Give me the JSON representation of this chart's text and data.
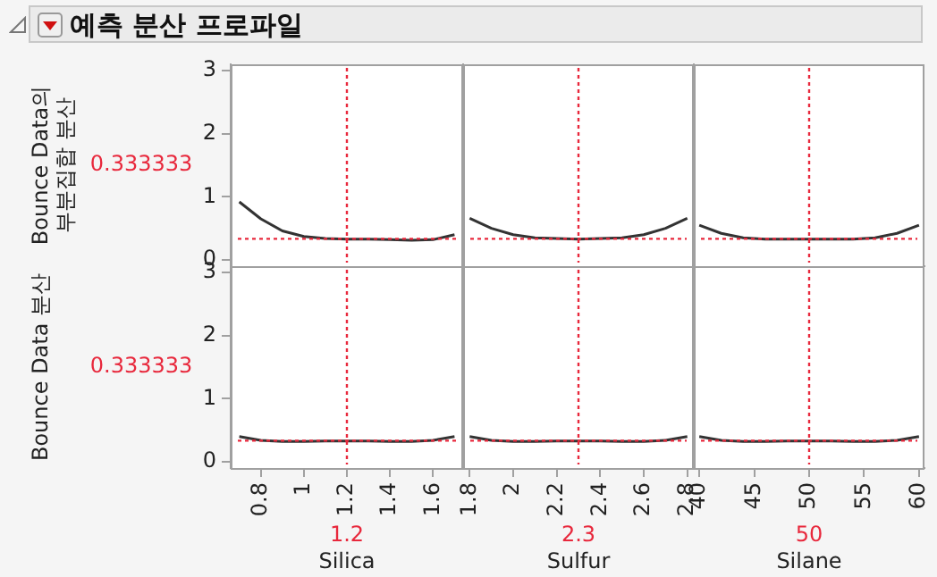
{
  "chart_data": [
    {
      "type": "line",
      "title": "예측 분산 프로파일",
      "ylabel": "Bounce Data의\n부분집합 분산",
      "x": [
        0.7,
        0.8,
        0.9,
        1.0,
        1.1,
        1.2,
        1.3,
        1.4,
        1.5,
        1.6,
        1.7
      ],
      "series": [
        {
          "color": "#333333",
          "values": [
            0.92,
            0.65,
            0.46,
            0.37,
            0.34,
            0.33,
            0.33,
            0.32,
            0.31,
            0.32,
            0.4
          ]
        }
      ],
      "xlim": [
        0.66,
        1.74
      ],
      "xticks": [
        0.8,
        1,
        1.2,
        1.4,
        1.6
      ],
      "ylim": [
        -0.1,
        3.1
      ],
      "yticks": [
        0,
        1,
        2,
        3
      ],
      "tick_labels": "y",
      "legend": false,
      "ref_lines": [
        {
          "axis": "x",
          "value": 1.2,
          "color": "#e8283c",
          "line_style": "dotted"
        },
        {
          "axis": "y",
          "value": 0.333333,
          "label": "0.333333",
          "color": "#e8283c",
          "line_style": "dotted"
        }
      ]
    },
    {
      "type": "line",
      "x": [
        1.8,
        1.9,
        2.0,
        2.1,
        2.2,
        2.3,
        2.4,
        2.5,
        2.6,
        2.7,
        2.8
      ],
      "series": [
        {
          "color": "#333333",
          "values": [
            0.66,
            0.5,
            0.4,
            0.35,
            0.34,
            0.33,
            0.34,
            0.35,
            0.4,
            0.5,
            0.66
          ]
        }
      ],
      "xlim": [
        1.77,
        2.83
      ],
      "xticks": [
        1.8,
        2,
        2.2,
        2.4,
        2.6,
        2.8
      ],
      "ylim": [
        -0.1,
        3.1
      ],
      "yticks": [
        0,
        1,
        2,
        3
      ],
      "tick_labels": false,
      "legend": false,
      "ref_lines": [
        {
          "axis": "x",
          "value": 2.3,
          "color": "#e8283c",
          "line_style": "dotted"
        },
        {
          "axis": "y",
          "value": 0.333333,
          "color": "#e8283c",
          "line_style": "dotted"
        }
      ]
    },
    {
      "type": "line",
      "x": [
        40,
        42,
        44,
        46,
        48,
        50,
        52,
        54,
        56,
        58,
        60
      ],
      "series": [
        {
          "color": "#333333",
          "values": [
            0.55,
            0.42,
            0.35,
            0.33,
            0.33,
            0.33,
            0.33,
            0.33,
            0.35,
            0.42,
            0.55
          ]
        }
      ],
      "xlim": [
        39.5,
        60.5
      ],
      "xticks": [
        40,
        45,
        50,
        55,
        60
      ],
      "ylim": [
        -0.1,
        3.1
      ],
      "yticks": [
        0,
        1,
        2,
        3
      ],
      "tick_labels": false,
      "legend": false,
      "ref_lines": [
        {
          "axis": "x",
          "value": 50,
          "color": "#e8283c",
          "line_style": "dotted"
        },
        {
          "axis": "y",
          "value": 0.333333,
          "color": "#e8283c",
          "line_style": "dotted"
        }
      ]
    },
    {
      "type": "line",
      "xlabel": "Silica",
      "ylabel": "Bounce Data 분산",
      "x": [
        0.7,
        0.8,
        0.9,
        1.0,
        1.1,
        1.2,
        1.3,
        1.4,
        1.5,
        1.6,
        1.7
      ],
      "series": [
        {
          "color": "#333333",
          "values": [
            0.4,
            0.34,
            0.32,
            0.32,
            0.33,
            0.33,
            0.33,
            0.32,
            0.32,
            0.34,
            0.4
          ]
        }
      ],
      "xlim": [
        0.66,
        1.74
      ],
      "xticks": [
        0.8,
        1,
        1.2,
        1.4,
        1.6
      ],
      "ylim": [
        -0.1,
        3.1
      ],
      "yticks": [
        0,
        1,
        2,
        3
      ],
      "legend": false,
      "ref_lines": [
        {
          "axis": "x",
          "value": 1.2,
          "label": "1.2",
          "color": "#e8283c",
          "line_style": "dotted"
        },
        {
          "axis": "y",
          "value": 0.333333,
          "label": "0.333333",
          "color": "#e8283c",
          "line_style": "dotted"
        }
      ]
    },
    {
      "type": "line",
      "xlabel": "Sulfur",
      "x": [
        1.8,
        1.9,
        2.0,
        2.1,
        2.2,
        2.3,
        2.4,
        2.5,
        2.6,
        2.7,
        2.8
      ],
      "series": [
        {
          "color": "#333333",
          "values": [
            0.4,
            0.34,
            0.32,
            0.32,
            0.33,
            0.33,
            0.33,
            0.32,
            0.32,
            0.34,
            0.4
          ]
        }
      ],
      "xlim": [
        1.77,
        2.83
      ],
      "xticks": [
        1.8,
        2,
        2.2,
        2.4,
        2.6,
        2.8
      ],
      "ylim": [
        -0.1,
        3.1
      ],
      "yticks": [
        0,
        1,
        2,
        3
      ],
      "tick_labels": "x",
      "legend": false,
      "ref_lines": [
        {
          "axis": "x",
          "value": 2.3,
          "label": "2.3",
          "color": "#e8283c",
          "line_style": "dotted"
        },
        {
          "axis": "y",
          "value": 0.333333,
          "color": "#e8283c",
          "line_style": "dotted"
        }
      ]
    },
    {
      "type": "line",
      "xlabel": "Silane",
      "x": [
        40,
        42,
        44,
        46,
        48,
        50,
        52,
        54,
        56,
        58,
        60
      ],
      "series": [
        {
          "color": "#333333",
          "values": [
            0.4,
            0.34,
            0.32,
            0.32,
            0.33,
            0.33,
            0.33,
            0.32,
            0.32,
            0.34,
            0.4
          ]
        }
      ],
      "xlim": [
        39.5,
        60.5
      ],
      "xticks": [
        40,
        45,
        50,
        55,
        60
      ],
      "ylim": [
        -0.1,
        3.1
      ],
      "yticks": [
        0,
        1,
        2,
        3
      ],
      "tick_labels": "x",
      "legend": false,
      "ref_lines": [
        {
          "axis": "x",
          "value": 50,
          "label": "50",
          "color": "#e8283c",
          "line_style": "dotted"
        },
        {
          "axis": "y",
          "value": 0.333333,
          "color": "#e8283c",
          "line_style": "dotted"
        }
      ]
    }
  ]
}
